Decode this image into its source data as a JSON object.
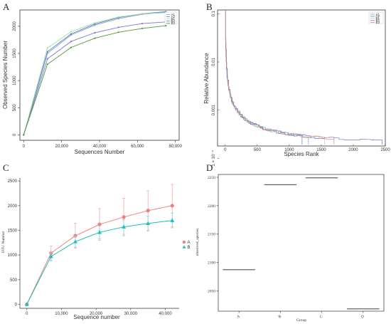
{
  "panels": {
    "A": "A",
    "B": "B",
    "C": "C",
    "D": "D"
  },
  "chart_data": [
    {
      "type": "line",
      "panel": "A",
      "title": "",
      "xlabel": "Sequences Number",
      "ylabel": "Observed Species Number",
      "xlim": [
        -2000,
        82000
      ],
      "ylim": [
        -100,
        2300
      ],
      "xticks": [
        0,
        20000,
        40000,
        60000,
        80000
      ],
      "xtick_labels": [
        "0",
        "20,000",
        "40,000",
        "60,000",
        "80,000"
      ],
      "yticks": [
        0,
        500,
        1000,
        1500,
        2000
      ],
      "ytick_labels": [
        "0",
        "500",
        "1000",
        "1500",
        "2000"
      ],
      "grid": false,
      "legend_position": "top-right",
      "x": [
        0,
        12500,
        25000,
        37500,
        50000,
        62500,
        75000
      ],
      "series": [
        {
          "name": "A1",
          "color": "#8c9ec8",
          "values": [
            0,
            1500,
            1840,
            2020,
            2140,
            2220,
            2260
          ]
        },
        {
          "name": "A2",
          "color": "#4f88c6",
          "values": [
            0,
            1530,
            1860,
            2040,
            2160,
            2230,
            2270
          ]
        },
        {
          "name": "B1",
          "color": "#a8d8a0",
          "values": [
            0,
            1600,
            1900,
            2060,
            2170,
            2230,
            2250
          ]
        },
        {
          "name": "B2",
          "color": "#7a7acc",
          "values": [
            0,
            1400,
            1720,
            1880,
            1980,
            2050,
            2080
          ]
        },
        {
          "name": "B3",
          "color": "#4e9a3c",
          "values": [
            0,
            1300,
            1610,
            1780,
            1890,
            1960,
            2010
          ]
        }
      ]
    },
    {
      "type": "line",
      "panel": "B",
      "title": "",
      "xlabel": "Species Rank",
      "ylabel": "Relative Abundance",
      "scale_y": "log",
      "xlim": [
        -120,
        2500
      ],
      "ylim": [
        0.00018,
        0.12
      ],
      "xticks": [
        0,
        500,
        1000,
        1500,
        2000,
        2500
      ],
      "xtick_labels": [
        "0",
        "500",
        "1000",
        "1500",
        "2000",
        "2500"
      ],
      "yticks": [
        0.1,
        0.01,
        0.001,
        0.0001
      ],
      "ytick_labels": [
        "0.1",
        "0.01",
        "0.001",
        "1 × 10⁻⁴"
      ],
      "grid": false,
      "legend_position": "top-right",
      "series": [
        {
          "name": "A1",
          "color": "#8c9ec8",
          "x_end": 1300
        },
        {
          "name": "A2",
          "color": "#4f88c6",
          "x_end": 1200
        },
        {
          "name": "B1",
          "color": "#a8d8a0",
          "x_end": 1550
        },
        {
          "name": "B2",
          "color": "#7a7acc",
          "x_end": 2450
        },
        {
          "name": "B3",
          "color": "#e48a80",
          "x_end": 1700
        }
      ]
    },
    {
      "type": "line",
      "panel": "C",
      "title": "",
      "xlabel": "Sequence number",
      "ylabel": "OTU Number",
      "xlim": [
        -2000,
        44000
      ],
      "ylim": [
        -80,
        2560
      ],
      "xticks": [
        0,
        10000,
        20000,
        30000,
        40000
      ],
      "xtick_labels": [
        "0",
        "10,000",
        "20,000",
        "30,000",
        "40,000"
      ],
      "yticks": [
        0,
        500,
        1000,
        1500,
        2000,
        2500
      ],
      "ytick_labels": [
        "0",
        "500",
        "1000",
        "1500",
        "2000",
        "2500"
      ],
      "grid": false,
      "legend_position": "right",
      "x": [
        0,
        7000,
        14000,
        21000,
        28000,
        35000,
        42000
      ],
      "series": [
        {
          "name": "A",
          "color": "#f08080",
          "marker": "circle",
          "values": [
            0,
            1040,
            1390,
            1620,
            1770,
            1900,
            2000
          ],
          "err": [
            0,
            140,
            250,
            320,
            380,
            400,
            430
          ]
        },
        {
          "name": "B",
          "color": "#1fbfbf",
          "marker": "triangle",
          "values": [
            0,
            970,
            1270,
            1460,
            1570,
            1640,
            1700
          ],
          "err": [
            0,
            90,
            110,
            130,
            150,
            150,
            150
          ]
        }
      ]
    },
    {
      "type": "bar",
      "panel": "D",
      "title": "",
      "xlabel": "Group",
      "ylabel": "observed_species",
      "categories": [
        "A",
        "B",
        "C",
        "D"
      ],
      "values": [
        2087,
        2237,
        2249,
        2018
      ],
      "ylim": [
        2014,
        2255
      ],
      "yticks": [
        2050,
        2100,
        2150,
        2200,
        2250
      ],
      "ytick_labels": [
        "2050",
        "2100",
        "2150",
        "2200",
        "2250"
      ],
      "grid": false
    }
  ]
}
